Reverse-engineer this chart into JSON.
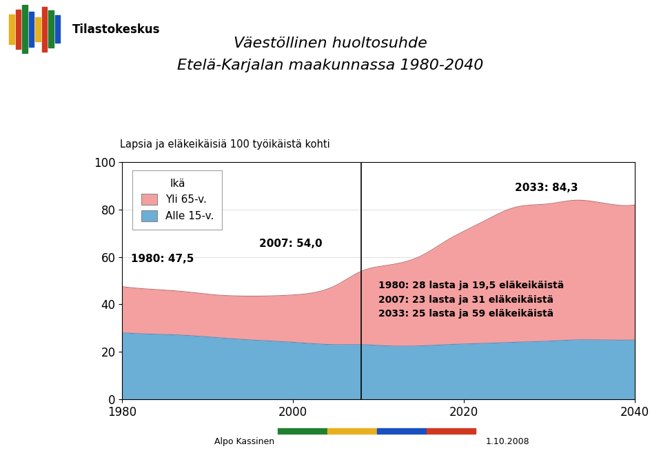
{
  "title_line1": "Väestöllinen huoltosuhde",
  "title_line2": "Etelä-Karjalan maakunnassa 1980-2040",
  "ylabel": "Lapsia ja eläkeikäisiä 100 työikäistä kohti",
  "legend_title": "Ikä",
  "legend_items": [
    "Yli 65-v.",
    "Alle 15-v."
  ],
  "color_old": "#F4A0A0",
  "color_young": "#6BAED6",
  "xlim": [
    1980,
    2040
  ],
  "ylim": [
    0,
    100
  ],
  "yticks": [
    0,
    20,
    40,
    60,
    80,
    100
  ],
  "xticks": [
    1980,
    2000,
    2020,
    2040
  ],
  "vertical_line_x": 2008,
  "annotation_total_1980": "1980: 47,5",
  "annotation_total_2007": "2007: 54,0",
  "annotation_total_2033": "2033: 84,3",
  "annotation_detail": "1980: 28 lasta ja 19,5 eläkeikäistä\n2007: 23 lasta ja 31 eläkeikäistä\n2033: 25 lasta ja 59 eläkeikäistä",
  "footer_left": "Alpo Kassinen",
  "footer_right": "1.10.2008",
  "years": [
    1980,
    1983,
    1987,
    1991,
    1995,
    2000,
    2005,
    2008,
    2011,
    2015,
    2018,
    2022,
    2026,
    2030,
    2033,
    2036,
    2040
  ],
  "young": [
    28,
    27.5,
    27,
    26,
    25,
    24,
    23,
    23,
    22.5,
    22.5,
    23,
    23.5,
    24,
    24.5,
    25,
    25,
    25
  ],
  "old": [
    19.5,
    19,
    18.5,
    18,
    18.5,
    20,
    25,
    31,
    34,
    38,
    44,
    51,
    57,
    58,
    59,
    58,
    57
  ]
}
